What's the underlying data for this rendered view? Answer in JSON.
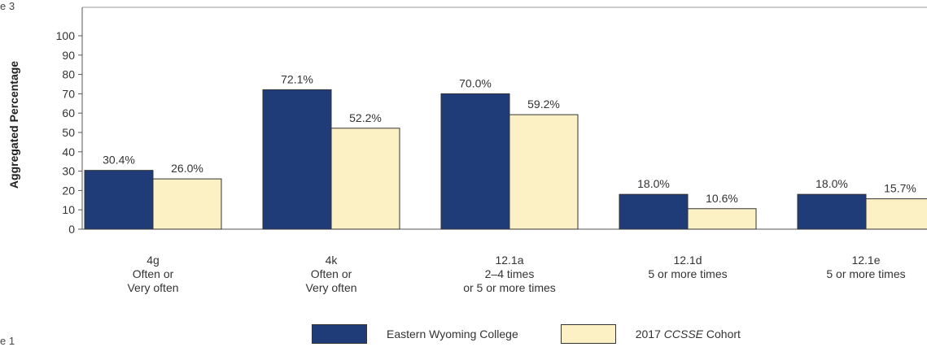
{
  "fragments": {
    "top_left": "e 3",
    "bottom_left": "e 1"
  },
  "chart_data": {
    "type": "bar",
    "ylabel": "Aggregated Percentage",
    "ylim": [
      0,
      100
    ],
    "yticks": [
      "0",
      "10",
      "20",
      "30",
      "40",
      "50",
      "60",
      "70",
      "80",
      "90",
      "100"
    ],
    "categories": [
      [
        "4g",
        "Often or",
        "Very often"
      ],
      [
        "4k",
        "Often or",
        "Very often"
      ],
      [
        "12.1a",
        "2–4 times",
        "or 5 or more times"
      ],
      [
        "12.1d",
        "5 or more times"
      ],
      [
        "12.1e",
        "5 or more times"
      ]
    ],
    "series": [
      {
        "name": "Eastern Wyoming College",
        "values": [
          30.4,
          72.1,
          70.0,
          18.0,
          18.0
        ],
        "labels": [
          "30.4%",
          "72.1%",
          "70.0%",
          "18.0%",
          "18.0%"
        ],
        "color": "#1f3c78"
      },
      {
        "name": "2017 CCSSE Cohort",
        "values": [
          26.0,
          52.2,
          59.2,
          10.6,
          15.7
        ],
        "labels": [
          "26.0%",
          "52.2%",
          "59.2%",
          "10.6%",
          "15.7%"
        ],
        "color": "#fbf1c4"
      }
    ],
    "legend": {
      "position": "bottom",
      "items": [
        {
          "prefix": "Eastern Wyoming College",
          "italic": "",
          "suffix": ""
        },
        {
          "prefix": "2017 ",
          "italic": "CCSSE",
          "suffix": " Cohort"
        }
      ]
    },
    "grid": false
  }
}
